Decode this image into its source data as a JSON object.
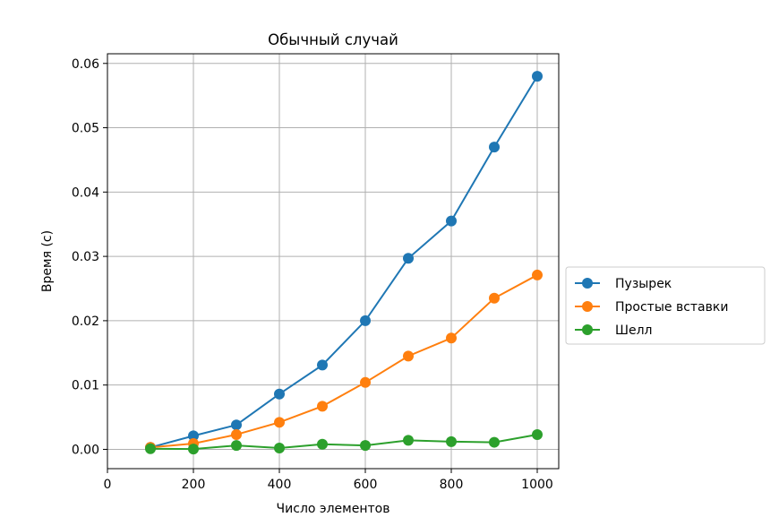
{
  "chart_data": {
    "type": "line",
    "title": "Обычный случай",
    "xlabel": "Число элементов",
    "ylabel": "Время (с)",
    "x": [
      100,
      200,
      300,
      400,
      500,
      600,
      700,
      800,
      900,
      1000
    ],
    "xlim": [
      0,
      1050
    ],
    "ylim": [
      -0.003,
      0.0615
    ],
    "xticks": [
      0,
      200,
      400,
      600,
      800,
      1000
    ],
    "yticks": [
      0.0,
      0.01,
      0.02,
      0.03,
      0.04,
      0.05,
      0.06
    ],
    "ytick_labels": [
      "0.00",
      "0.01",
      "0.02",
      "0.03",
      "0.04",
      "0.05",
      "0.06"
    ],
    "grid": true,
    "legend_position": "outside-right",
    "series": [
      {
        "name": "Пузырек",
        "color": "#1f77b4",
        "values": [
          0.0003,
          0.0021,
          0.0038,
          0.0086,
          0.0131,
          0.02,
          0.0297,
          0.0355,
          0.047,
          0.058
        ]
      },
      {
        "name": "Простые вставки",
        "color": "#ff7f0e",
        "values": [
          0.0003,
          0.0009,
          0.0023,
          0.0042,
          0.0067,
          0.0104,
          0.0145,
          0.0173,
          0.0235,
          0.0271
        ]
      },
      {
        "name": "Шелл",
        "color": "#2ca02c",
        "values": [
          0.0001,
          5e-05,
          0.0006,
          0.0002,
          0.0008,
          0.0006,
          0.0014,
          0.0012,
          0.0011,
          0.0023
        ]
      }
    ]
  }
}
